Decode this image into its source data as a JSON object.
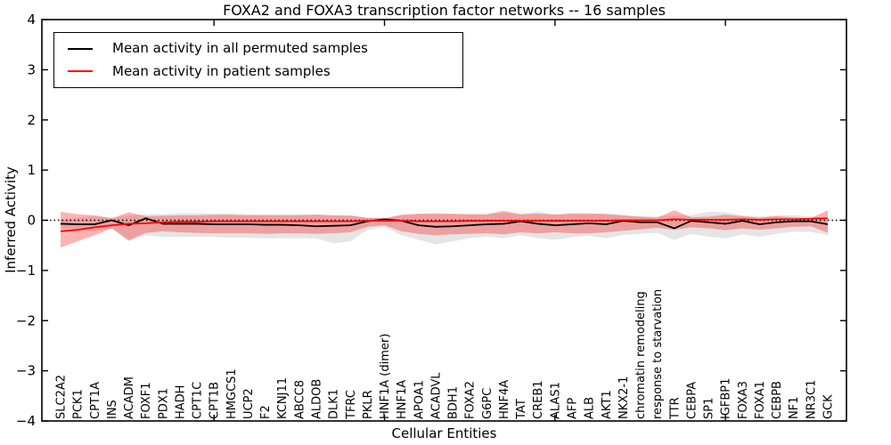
{
  "title": "FOXA2 and FOXA3 transcription factor networks -- 16 samples",
  "chart_data": {
    "type": "line",
    "title": "FOXA2 and FOXA3 transcription factor networks -- 16 samples",
    "xlabel": "Cellular Entities",
    "ylabel": "Inferred Activity",
    "ylim": [
      -4,
      4
    ],
    "grid": false,
    "legend_position": "upper left",
    "y_ticks": [
      4,
      3,
      2,
      1,
      0,
      -1,
      -2,
      -3,
      -4
    ],
    "y_tick_labels": [
      "4",
      "3",
      "2",
      "1",
      "0",
      "−1",
      "−2",
      "−3",
      "−4"
    ],
    "x_major_tick_indices": [
      9,
      19,
      29,
      39
    ],
    "reference_line": {
      "y": 0,
      "style": "dotted",
      "color": "#000000"
    },
    "categories": [
      "SLC2A2",
      "PCK1",
      "CPT1A",
      "INS",
      "ACADM",
      "FOXF1",
      "PDX1",
      "HADH",
      "CPT1C",
      "CPT1B",
      "HMGCS1",
      "UCP2",
      "F2",
      "KCNJ11",
      "ABCC8",
      "ALDOB",
      "DLK1",
      "TFRC",
      "PKLR",
      "HNF1A (dimer)",
      "HNF1A",
      "APOA1",
      "ACADVL",
      "BDH1",
      "FOXA2",
      "G6PC",
      "HNF4A",
      "TAT",
      "CREB1",
      "ALAS1",
      "AFP",
      "ALB",
      "AKT1",
      "NKX2-1",
      "chromatin remodeling",
      "response to starvation",
      "TTR",
      "CEBPA",
      "SP1",
      "IGFBP1",
      "FOXA3",
      "FOXA1",
      "CEBPB",
      "NF1",
      "NR3C1",
      "GCK"
    ],
    "series": [
      {
        "name": "Mean activity in all permuted samples",
        "color": "#000000",
        "band_color": "rgba(0,0,0,0.10)",
        "values": [
          -0.07,
          -0.08,
          -0.08,
          0.0,
          -0.1,
          0.04,
          -0.07,
          -0.07,
          -0.07,
          -0.08,
          -0.08,
          -0.08,
          -0.09,
          -0.09,
          -0.1,
          -0.12,
          -0.11,
          -0.1,
          -0.02,
          0.02,
          -0.01,
          -0.1,
          -0.13,
          -0.12,
          -0.1,
          -0.08,
          -0.07,
          -0.02,
          -0.07,
          -0.1,
          -0.08,
          -0.06,
          -0.08,
          -0.01,
          -0.04,
          -0.04,
          -0.16,
          -0.01,
          -0.04,
          -0.07,
          -0.01,
          -0.08,
          -0.04,
          -0.02,
          -0.02,
          -0.08
        ],
        "band_upper": [
          0.02,
          0.05,
          0.08,
          0.05,
          0.1,
          0.12,
          0.12,
          0.14,
          0.14,
          0.13,
          0.13,
          0.12,
          0.12,
          0.12,
          0.12,
          0.12,
          0.1,
          0.1,
          0.05,
          0.04,
          0.1,
          0.12,
          0.12,
          0.12,
          0.12,
          0.12,
          0.15,
          0.12,
          0.17,
          0.12,
          0.12,
          0.12,
          0.14,
          0.1,
          0.08,
          0.08,
          0.1,
          0.1,
          0.17,
          0.16,
          0.1,
          0.08,
          0.1,
          0.1,
          0.08,
          0.05
        ],
        "band_lower": [
          -0.16,
          -0.19,
          -0.22,
          -0.16,
          -0.42,
          -0.3,
          -0.33,
          -0.33,
          -0.33,
          -0.33,
          -0.35,
          -0.35,
          -0.36,
          -0.36,
          -0.36,
          -0.36,
          -0.46,
          -0.42,
          -0.19,
          -0.13,
          -0.3,
          -0.39,
          -0.48,
          -0.42,
          -0.36,
          -0.33,
          -0.36,
          -0.3,
          -0.36,
          -0.39,
          -0.34,
          -0.31,
          -0.36,
          -0.29,
          -0.27,
          -0.25,
          -0.39,
          -0.27,
          -0.33,
          -0.36,
          -0.28,
          -0.33,
          -0.27,
          -0.23,
          -0.23,
          -0.3
        ]
      },
      {
        "name": "Mean activity in patient samples",
        "color": "#ff0000",
        "band_color": "rgba(255,0,0,0.30)",
        "values": [
          -0.22,
          -0.19,
          -0.14,
          -0.1,
          -0.07,
          -0.06,
          -0.04,
          -0.03,
          -0.03,
          -0.02,
          -0.02,
          -0.02,
          -0.02,
          -0.02,
          -0.02,
          -0.02,
          -0.02,
          -0.02,
          -0.01,
          -0.01,
          -0.01,
          -0.02,
          -0.02,
          -0.02,
          -0.01,
          -0.01,
          -0.01,
          -0.01,
          -0.01,
          -0.01,
          -0.01,
          -0.01,
          -0.01,
          0.0,
          0.0,
          0.0,
          0.02,
          0.01,
          0.01,
          0.01,
          0.02,
          0.01,
          0.02,
          0.02,
          0.03,
          0.04
        ],
        "band_upper": [
          0.17,
          0.12,
          0.1,
          0.04,
          0.16,
          0.08,
          0.09,
          0.1,
          0.1,
          0.11,
          0.11,
          0.1,
          0.1,
          0.1,
          0.1,
          0.11,
          0.1,
          0.09,
          0.05,
          0.04,
          0.11,
          0.13,
          0.14,
          0.13,
          0.12,
          0.12,
          0.19,
          0.12,
          0.13,
          0.11,
          0.14,
          0.14,
          0.12,
          0.1,
          0.07,
          0.05,
          0.2,
          0.06,
          0.07,
          0.11,
          0.08,
          0.05,
          0.08,
          0.06,
          0.04,
          0.2
        ],
        "band_lower": [
          -0.54,
          -0.42,
          -0.3,
          -0.16,
          -0.4,
          -0.25,
          -0.22,
          -0.24,
          -0.25,
          -0.26,
          -0.26,
          -0.26,
          -0.27,
          -0.26,
          -0.26,
          -0.27,
          -0.26,
          -0.24,
          -0.13,
          -0.1,
          -0.22,
          -0.27,
          -0.3,
          -0.28,
          -0.27,
          -0.26,
          -0.28,
          -0.24,
          -0.26,
          -0.24,
          -0.26,
          -0.26,
          -0.24,
          -0.21,
          -0.18,
          -0.15,
          -0.19,
          -0.14,
          -0.16,
          -0.2,
          -0.16,
          -0.19,
          -0.16,
          -0.13,
          -0.12,
          -0.25
        ]
      }
    ]
  }
}
